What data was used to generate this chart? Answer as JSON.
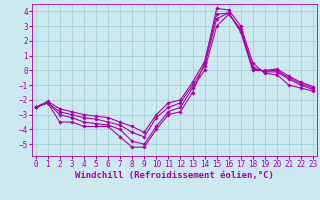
{
  "xlabel": "Windchill (Refroidissement éolien,°C)",
  "bg_color": "#cce8f0",
  "grid_color": "#9dcfcc",
  "line_color": "#aa00aa",
  "x": [
    0,
    1,
    2,
    3,
    4,
    5,
    6,
    7,
    8,
    9,
    10,
    11,
    12,
    13,
    14,
    15,
    16,
    17,
    18,
    19,
    20,
    21,
    22,
    23
  ],
  "lines": [
    [
      -2.5,
      -2.2,
      -3.5,
      -3.5,
      -3.8,
      -3.8,
      -3.8,
      -4.5,
      -5.2,
      -5.2,
      -4.0,
      -3.0,
      -2.8,
      -1.5,
      0.5,
      4.2,
      4.1,
      3.0,
      0.5,
      -0.2,
      -0.3,
      -1.0,
      -1.2,
      -1.4
    ],
    [
      -2.5,
      -2.2,
      -3.0,
      -3.2,
      -3.5,
      -3.6,
      -3.7,
      -4.0,
      -4.8,
      -5.0,
      -3.8,
      -2.8,
      -2.5,
      -1.2,
      0.0,
      3.0,
      3.8,
      2.8,
      0.2,
      -0.1,
      -0.1,
      -0.6,
      -1.0,
      -1.3
    ],
    [
      -2.5,
      -2.2,
      -2.8,
      -3.0,
      -3.2,
      -3.3,
      -3.5,
      -3.7,
      -4.2,
      -4.5,
      -3.2,
      -2.5,
      -2.2,
      -1.0,
      0.3,
      3.5,
      3.9,
      2.7,
      0.1,
      -0.05,
      0.0,
      -0.5,
      -0.9,
      -1.2
    ],
    [
      -2.5,
      -2.1,
      -2.6,
      -2.8,
      -3.0,
      -3.1,
      -3.2,
      -3.5,
      -3.8,
      -4.2,
      -3.0,
      -2.2,
      -2.0,
      -0.8,
      0.6,
      3.8,
      3.9,
      2.6,
      0.0,
      0.0,
      0.1,
      -0.4,
      -0.8,
      -1.1
    ]
  ],
  "ylim": [
    -5.8,
    4.5
  ],
  "yticks": [
    -5,
    -4,
    -3,
    -2,
    -1,
    0,
    1,
    2,
    3,
    4
  ],
  "xlim": [
    -0.3,
    23.3
  ],
  "xticks": [
    0,
    1,
    2,
    3,
    4,
    5,
    6,
    7,
    8,
    9,
    10,
    11,
    12,
    13,
    14,
    15,
    16,
    17,
    18,
    19,
    20,
    21,
    22,
    23
  ],
  "marker": "D",
  "markersize": 1.8,
  "linewidth": 0.8,
  "tick_fontsize": 5.5,
  "label_fontsize": 6.5
}
